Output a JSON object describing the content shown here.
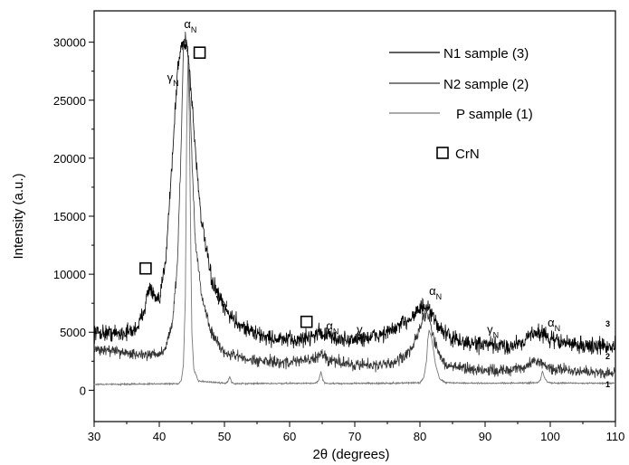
{
  "chart_data": {
    "type": "line",
    "xlabel": "2θ (degrees)",
    "ylabel": "Intensity (a.u.)",
    "xlim": [
      30,
      110
    ],
    "ylim": [
      -2700,
      32700
    ],
    "xticks": [
      "30",
      "40",
      "50",
      "60",
      "70",
      "80",
      "90",
      "100",
      "110"
    ],
    "yticks": [
      "0",
      "5000",
      "10000",
      "15000",
      "20000",
      "25000",
      "30000"
    ],
    "legend": {
      "placement": "top-right",
      "entries": [
        "N1 sample (3)",
        "N2 sample (2)",
        "P sample (1)"
      ],
      "marker_entry": "CrN"
    },
    "curve_labels": [
      "3",
      "2",
      "1"
    ],
    "series": [
      {
        "name": "N1 sample (3)",
        "color": "#000000",
        "noise": 700,
        "x": [
          30,
          34,
          36,
          37,
          37.8,
          38.5,
          39.2,
          40,
          41,
          42,
          42.8,
          43.3,
          43.8,
          44.3,
          45,
          45.7,
          46.5,
          48,
          50,
          52,
          55,
          58,
          61,
          63,
          64.5,
          66,
          68,
          70,
          72,
          74,
          76,
          78,
          79.5,
          80.5,
          81.5,
          82.5,
          84,
          86,
          88,
          90,
          92,
          94,
          96,
          97.5,
          98.5,
          100,
          103,
          106,
          110
        ],
        "y": [
          5000,
          4900,
          5100,
          5800,
          7300,
          9000,
          8000,
          7500,
          11500,
          20000,
          27500,
          29500,
          30000,
          29800,
          25000,
          19500,
          14500,
          9500,
          7000,
          5800,
          4800,
          4400,
          4300,
          4600,
          5000,
          4700,
          4300,
          4400,
          4500,
          4800,
          5200,
          6000,
          6800,
          7200,
          6800,
          5800,
          4800,
          4200,
          4000,
          3900,
          3800,
          3800,
          4300,
          5000,
          5000,
          4400,
          4000,
          3800,
          3800
        ]
      },
      {
        "name": "N2 sample (2)",
        "color": "#333333",
        "noise": 500,
        "x": [
          30,
          34,
          37,
          39,
          40,
          41,
          42,
          42.8,
          43.3,
          43.7,
          44,
          44.5,
          45,
          45.5,
          46.5,
          48,
          50,
          55,
          60,
          62,
          64,
          65,
          66,
          70,
          74,
          76,
          78,
          79.5,
          80.5,
          81,
          81.5,
          82,
          83,
          84,
          88,
          92,
          96,
          97.5,
          98.5,
          100,
          105,
          110
        ],
        "y": [
          3500,
          3300,
          3100,
          3000,
          3100,
          3700,
          5800,
          11000,
          20000,
          29500,
          30400,
          28500,
          20000,
          13000,
          8000,
          5000,
          3200,
          2500,
          2400,
          2600,
          2700,
          3300,
          2600,
          2200,
          2200,
          2400,
          3000,
          4500,
          6200,
          6800,
          6000,
          4600,
          3000,
          2200,
          1800,
          1700,
          1900,
          2500,
          2400,
          1900,
          1600,
          1500
        ]
      },
      {
        "name": "P sample (1)",
        "color": "#777777",
        "noise": 60,
        "x": [
          30,
          40,
          43,
          43.4,
          43.7,
          44,
          44.2,
          44.4,
          44.6,
          44.8,
          45,
          45.3,
          46,
          50,
          50.5,
          50.8,
          51.1,
          51.5,
          55,
          64,
          64.5,
          64.8,
          65.1,
          65.4,
          66,
          74,
          80,
          80.6,
          81,
          81.2,
          81.4,
          81.8,
          82.4,
          83,
          84,
          90,
          98,
          98.5,
          98.8,
          99.1,
          99.6,
          100.5,
          110
        ],
        "y": [
          500,
          550,
          580,
          900,
          2200,
          8000,
          22000,
          28500,
          24000,
          14000,
          5000,
          1800,
          800,
          600,
          700,
          1200,
          700,
          560,
          580,
          600,
          900,
          1600,
          900,
          630,
          580,
          600,
          650,
          1100,
          2500,
          4300,
          5200,
          4500,
          2200,
          1000,
          650,
          600,
          640,
          900,
          1700,
          1100,
          680,
          620,
          600
        ]
      }
    ],
    "annotations": [
      {
        "symbol": "α",
        "sub": "N",
        "x": 43.8,
        "y": 31200
      },
      {
        "symbol": "γ",
        "sub": "N",
        "x": 41.2,
        "y": 26600
      },
      {
        "symbol": "γ",
        "sub": "N",
        "x": 48.7,
        "y": 7600
      },
      {
        "symbol": "α",
        "sub": "N",
        "x": 65.6,
        "y": 5200
      },
      {
        "symbol": "γ",
        "sub": "N",
        "x": 70.3,
        "y": 4900
      },
      {
        "symbol": "α",
        "sub": "N",
        "x": 81.4,
        "y": 8200
      },
      {
        "symbol": "γ",
        "sub": "N",
        "x": 90.3,
        "y": 4900
      },
      {
        "symbol": "α",
        "sub": "N",
        "x": 99.6,
        "y": 5500
      }
    ],
    "crn_markers": [
      {
        "x": 46.2,
        "y": 29100
      },
      {
        "x": 37.9,
        "y": 10500
      },
      {
        "x": 62.6,
        "y": 5900
      }
    ]
  }
}
